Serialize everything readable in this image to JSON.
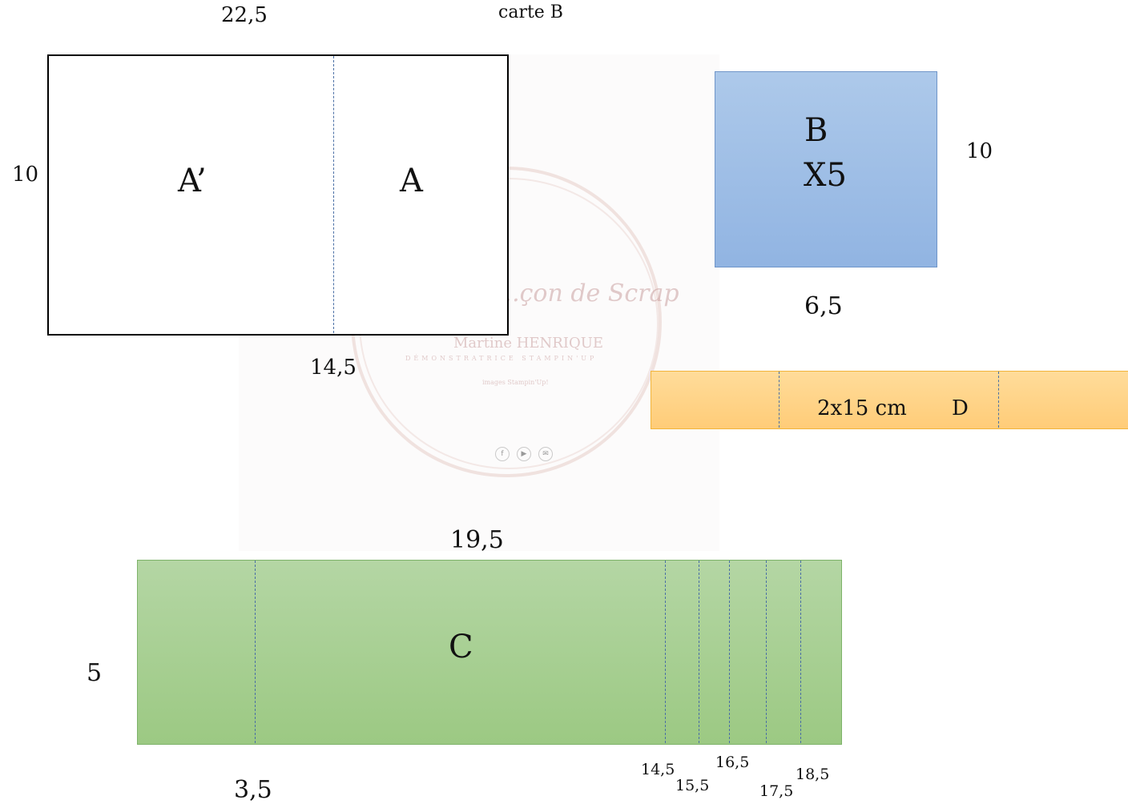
{
  "title": "carte B",
  "watermark": {
    "title": "...çon de Scrap",
    "name": "Martine HENRIQUE",
    "subtitle": "DÉMONSTRATRICE STAMPIN'UP",
    "small": "images Stampin'Up!",
    "icons": [
      "facebook-icon",
      "youtube-icon",
      "mail-icon"
    ]
  },
  "shape_a": {
    "width_label": "22,5",
    "height_label": "10",
    "fold_label": "14,5",
    "left_panel": "A’",
    "right_panel": "A"
  },
  "shape_b": {
    "label": "B",
    "count": "X5",
    "height_label": "10",
    "width_label": "6,5",
    "fill": "#9fbde6"
  },
  "shape_d": {
    "size_label": "2x15 cm",
    "label": "D",
    "fill": "#ffd489"
  },
  "shape_c": {
    "label": "C",
    "width_label": "19,5",
    "height_label": "5",
    "first_fold_label": "3,5",
    "fold_labels": [
      "14,5",
      "15,5",
      "16,5",
      "17,5",
      "18,5"
    ],
    "fill": "#a9cf96"
  }
}
